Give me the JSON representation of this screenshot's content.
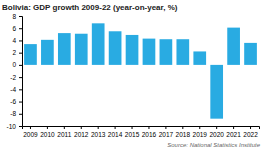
{
  "chart_data": {
    "type": "bar",
    "title": "Bolivia: GDP growth 2009-22 (year-on-year, %)",
    "categories": [
      "2009",
      "2010",
      "2011",
      "2012",
      "2013",
      "2014",
      "2015",
      "2016",
      "2017",
      "2018",
      "2019",
      "2020",
      "2021",
      "2022"
    ],
    "values": [
      3.4,
      4.1,
      5.2,
      5.1,
      6.8,
      5.5,
      4.9,
      4.3,
      4.2,
      4.2,
      2.2,
      -8.8,
      6.1,
      3.6
    ],
    "color": "#29abe2",
    "ylim": [
      -10,
      8
    ],
    "yticks": [
      -10,
      -8,
      -6,
      -4,
      -2,
      0,
      2,
      4,
      6,
      8
    ],
    "annotations": [
      "Source: National Statistics Institute"
    ],
    "grid": false
  }
}
